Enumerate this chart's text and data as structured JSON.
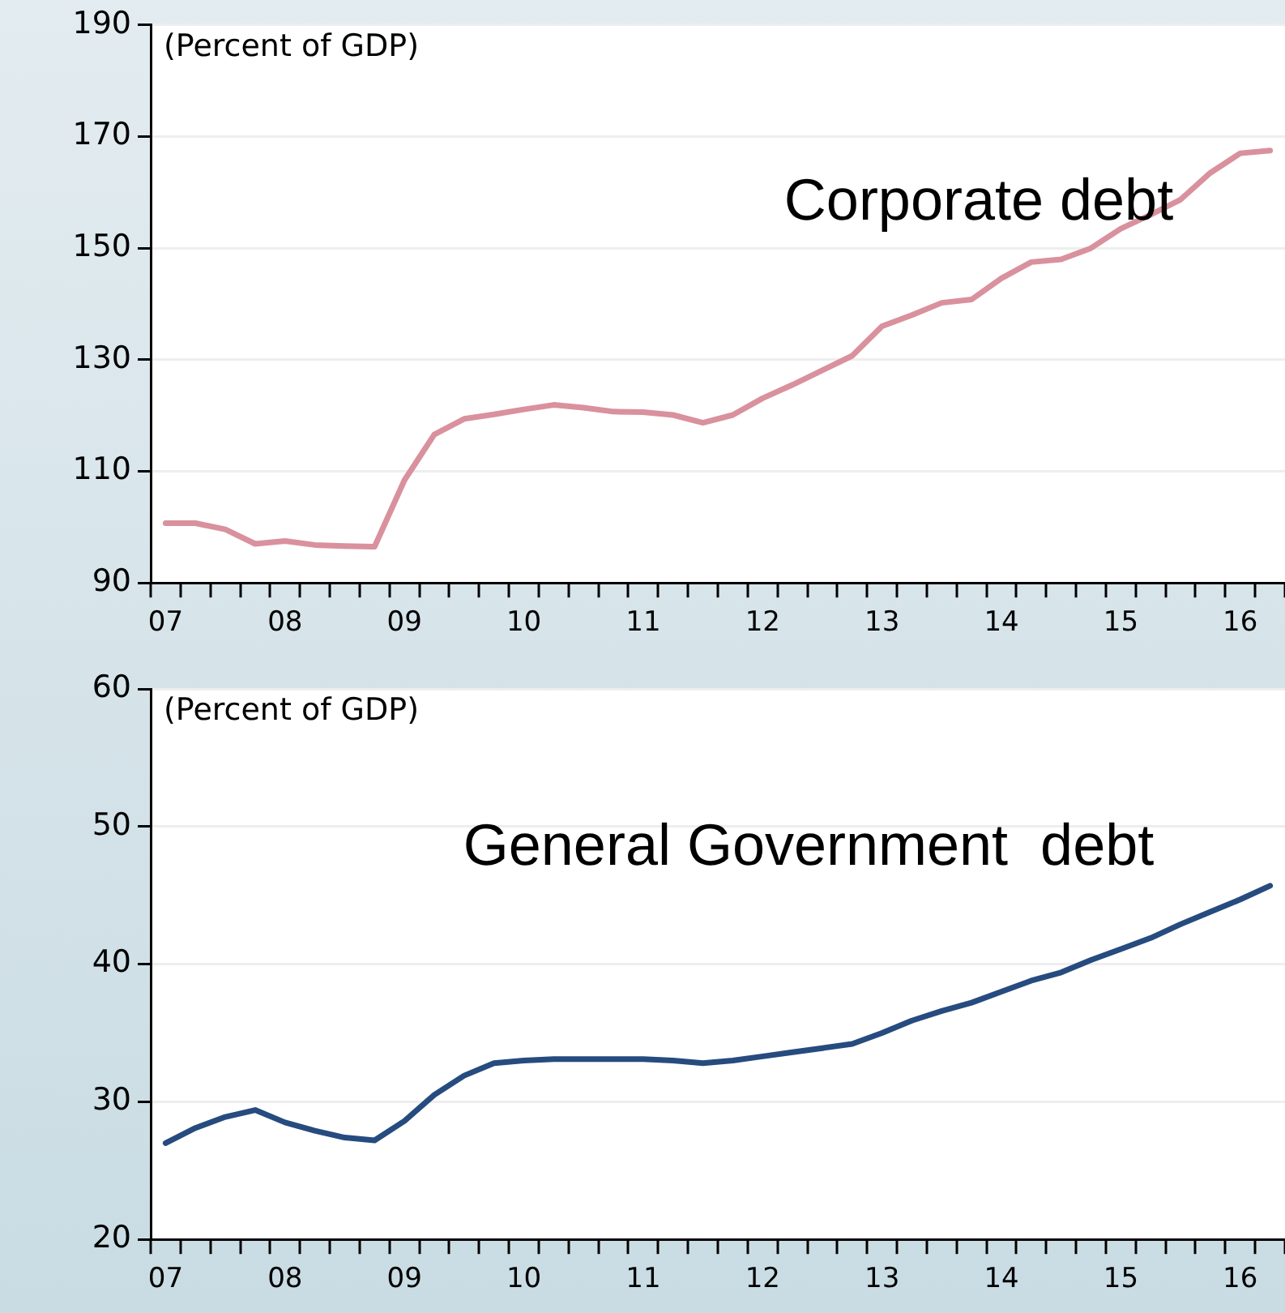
{
  "chart_data": [
    {
      "type": "line",
      "ylabel": "(Percent of GDP)",
      "categories": [
        "07",
        null,
        null,
        null,
        "08",
        null,
        null,
        null,
        "09",
        null,
        null,
        null,
        "10",
        null,
        null,
        null,
        "11",
        null,
        null,
        null,
        "12",
        null,
        null,
        null,
        "13",
        null,
        null,
        null,
        "14",
        null,
        null,
        null,
        "15",
        null,
        null,
        null,
        "16",
        null
      ],
      "series": [
        {
          "name": "Corporate debt",
          "color": "#d9919d",
          "values": [
            100.7,
            100.7,
            99.6,
            97.0,
            97.5,
            96.8,
            96.6,
            96.5,
            108.4,
            116.6,
            119.4,
            120.2,
            121.1,
            121.9,
            121.4,
            120.7,
            120.6,
            120.1,
            118.7,
            120.1,
            123.1,
            125.5,
            128.1,
            130.7,
            136.0,
            138.0,
            140.2,
            140.8,
            144.6,
            147.5,
            148.0,
            150.0,
            153.5,
            156.0,
            158.7,
            163.5,
            167.0,
            167.5
          ]
        }
      ],
      "ylim": [
        90,
        190
      ],
      "yticks": [
        90,
        110,
        130,
        150,
        170,
        190
      ],
      "grid": "y",
      "marker": "none"
    },
    {
      "type": "line",
      "ylabel": "(Percent of GDP)",
      "categories": [
        "07",
        null,
        null,
        null,
        "08",
        null,
        null,
        null,
        "09",
        null,
        null,
        null,
        "10",
        null,
        null,
        null,
        "11",
        null,
        null,
        null,
        "12",
        null,
        null,
        null,
        "13",
        null,
        null,
        null,
        "14",
        null,
        null,
        null,
        "15",
        null,
        null,
        null,
        "16",
        null
      ],
      "series": [
        {
          "name": "General Government  debt",
          "color": "#264b7f",
          "values": [
            27.0,
            28.1,
            28.9,
            29.4,
            28.5,
            27.9,
            27.4,
            27.2,
            28.6,
            30.5,
            31.9,
            32.8,
            33.0,
            33.1,
            33.1,
            33.1,
            33.1,
            33.0,
            32.8,
            33.0,
            33.3,
            33.6,
            33.9,
            34.2,
            35.0,
            35.9,
            36.6,
            37.2,
            38.0,
            38.8,
            39.4,
            40.3,
            41.1,
            41.9,
            42.9,
            43.8,
            44.7,
            45.7
          ]
        }
      ],
      "ylim": [
        20,
        60
      ],
      "yticks": [
        20,
        30,
        40,
        50,
        60
      ],
      "grid": "y",
      "marker": "none"
    }
  ]
}
